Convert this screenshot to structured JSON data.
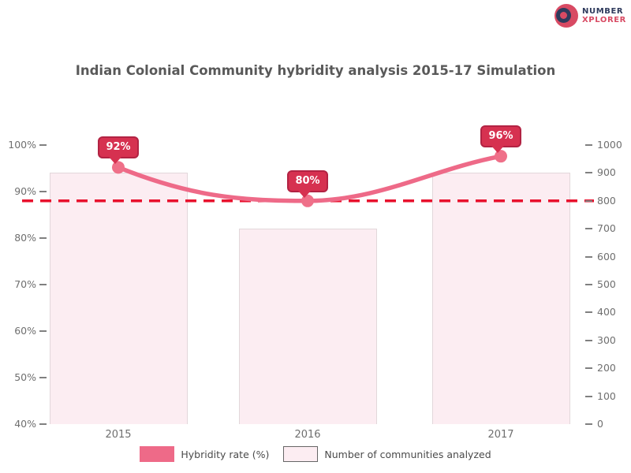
{
  "title": "Indian Colonial Community hybridity analysis 2015-17 Simulation",
  "logo": {
    "line1": "NUMBER",
    "line2": "XPLORER"
  },
  "colors": {
    "title_text": "#595959",
    "axis_text": "#6f6f6f",
    "tick_mark": "#808080",
    "legend_text": "#4a4a4a",
    "line": "#ee6a88",
    "marker": "#ef7089",
    "bubble_bg": "#d63150",
    "bubble_border": "#b22343",
    "bubble_text": "#ffffff",
    "bar_fill": "#fcedf2",
    "bar_border": "#e2d7da",
    "dashed": "#e8112d",
    "bar_legend_border": "#666666",
    "logo_navy": "#2e3a5c",
    "logo_red": "#d84a63"
  },
  "chart_data": {
    "type": "bar",
    "subtype": "combo-bar-line-dual-axis",
    "title": "Indian Colonial Community hybridity analysis 2015-17 Simulation",
    "categories": [
      "2015",
      "2016",
      "2017"
    ],
    "series": [
      {
        "name": "Hybridity rate (%)",
        "type": "line",
        "axis": "left",
        "values": [
          92,
          80,
          96
        ],
        "point_labels": [
          "92%",
          "80%",
          "96%"
        ],
        "ylim": [
          0,
          100
        ]
      },
      {
        "name": "Number of communities analyzed",
        "type": "bar",
        "axis": "right",
        "values": [
          900,
          700,
          900
        ],
        "ylim": [
          0,
          1000
        ]
      }
    ],
    "target_line": {
      "value": 80,
      "unit": "%",
      "style": "dashed"
    },
    "left_axis_ticks": [
      "100%",
      "90%",
      "80%",
      "70%",
      "60%",
      "50%",
      "40%"
    ],
    "right_axis_ticks": [
      "1000",
      "900",
      "800",
      "700",
      "600",
      "500",
      "400",
      "300",
      "200",
      "100",
      "0"
    ],
    "legend_position": "bottom",
    "grid": false,
    "xlabel": "",
    "ylabel": ""
  }
}
